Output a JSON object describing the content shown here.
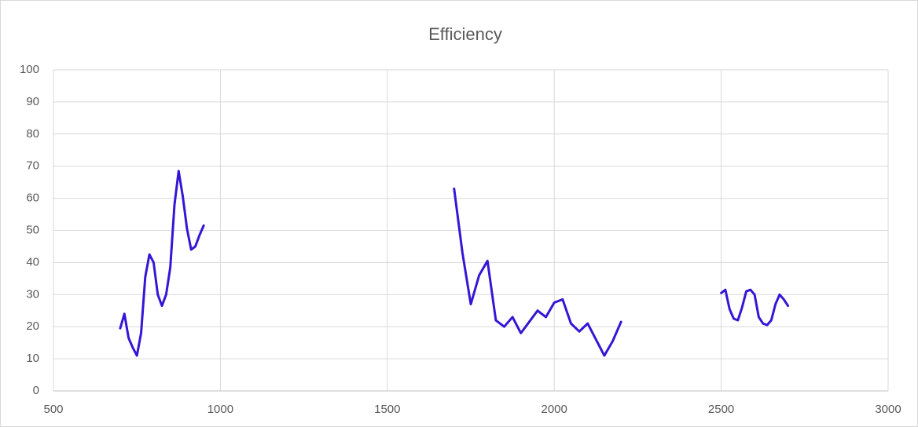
{
  "chart_data": {
    "type": "line",
    "title": "Efficiency",
    "x": [
      700,
      712.5,
      725,
      737.5,
      750,
      762.5,
      775,
      787.5,
      800,
      812.5,
      825,
      837.5,
      850,
      862.5,
      875,
      887.5,
      900,
      912.5,
      925,
      937.5,
      950,
      null,
      1700,
      1725,
      1750,
      1775,
      1800,
      1825,
      1850,
      1875,
      1900,
      1925,
      1950,
      1975,
      2000,
      2025,
      2050,
      2075,
      2100,
      2125,
      2150,
      2175,
      2200,
      null,
      2500,
      2512.5,
      2525,
      2537.5,
      2550,
      2562.5,
      2575,
      2587.5,
      2600,
      2612.5,
      2625,
      2637.5,
      2650,
      2662.5,
      2675,
      2687.5,
      2700
    ],
    "series": [
      {
        "name": "Efficiency",
        "color": "#3516d6",
        "values": [
          19.5,
          24,
          16.5,
          13.5,
          11,
          18,
          35.5,
          42.5,
          40,
          30,
          26.5,
          30,
          38.5,
          58,
          68.5,
          60.5,
          50.5,
          44,
          45,
          48.5,
          51.5,
          null,
          63,
          43,
          27,
          36,
          40.5,
          22,
          20,
          23,
          18,
          21.5,
          25,
          23,
          27.5,
          28.5,
          21,
          18.5,
          21,
          16,
          11,
          15.5,
          21.5,
          null,
          30.5,
          31.5,
          25.5,
          22.5,
          22,
          26,
          31,
          31.5,
          30,
          23,
          21,
          20.5,
          22,
          27,
          30,
          28.5,
          26.5
        ]
      }
    ],
    "xlim": [
      500,
      3000
    ],
    "xticks": [
      500,
      1000,
      1500,
      2000,
      2500,
      3000
    ],
    "ylim": [
      0,
      100
    ],
    "yticks": [
      0,
      10,
      20,
      30,
      40,
      50,
      60,
      70,
      80,
      90,
      100
    ],
    "grid": true
  }
}
